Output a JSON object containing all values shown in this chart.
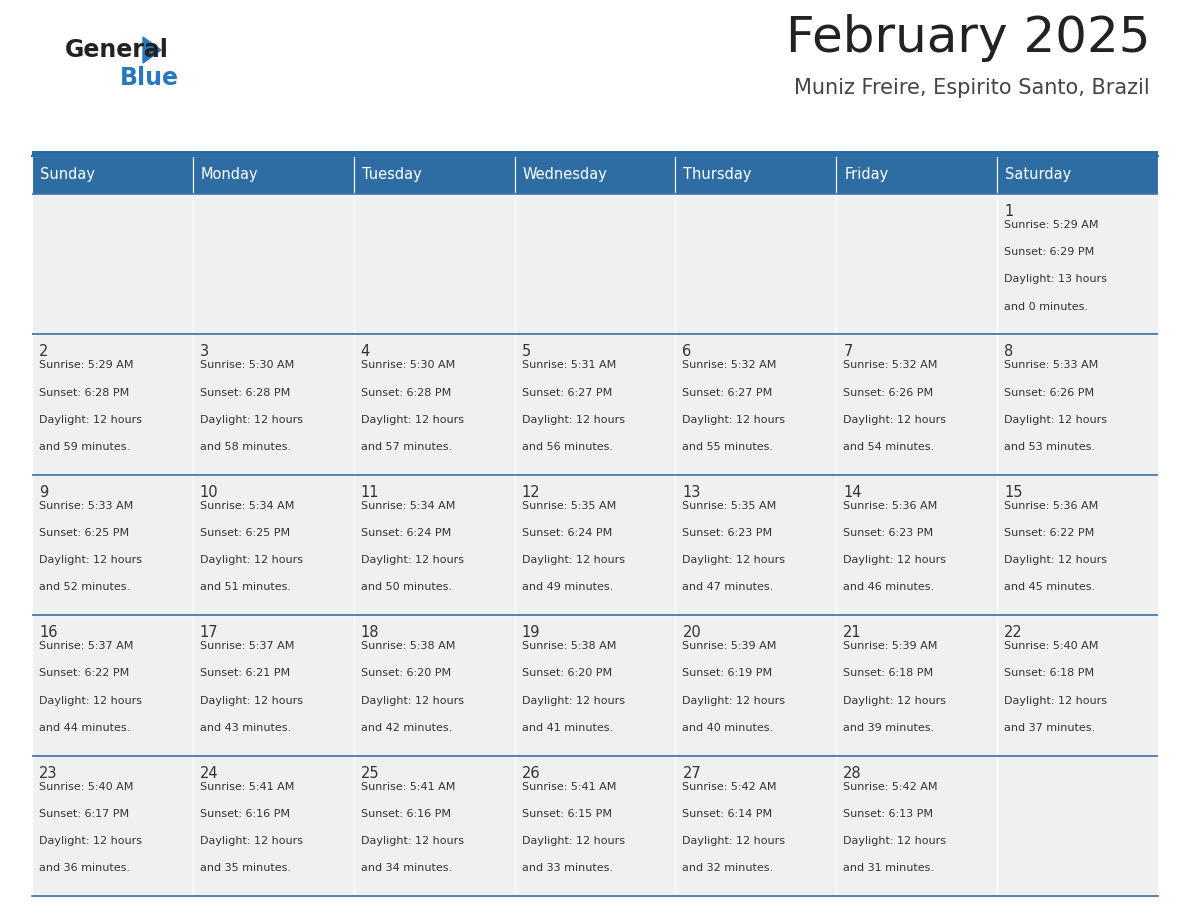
{
  "title": "February 2025",
  "subtitle": "Muniz Freire, Espirito Santo, Brazil",
  "days_of_week": [
    "Sunday",
    "Monday",
    "Tuesday",
    "Wednesday",
    "Thursday",
    "Friday",
    "Saturday"
  ],
  "header_bg": "#2E6DA4",
  "header_text": "#FFFFFF",
  "cell_bg_light": "#F0F0F0",
  "cell_border_color": "#3A6EA5",
  "row_sep_color": "#3A6EA5",
  "day_num_color": "#333333",
  "info_text_color": "#333333",
  "title_color": "#222222",
  "subtitle_color": "#444444",
  "logo_general_color": "#222222",
  "logo_blue_color": "#2878BE",
  "calendar_data": [
    [
      null,
      null,
      null,
      null,
      null,
      null,
      {
        "day": 1,
        "sunrise": "5:29 AM",
        "sunset": "6:29 PM",
        "daylight_hours": 13,
        "daylight_minutes": 0
      }
    ],
    [
      {
        "day": 2,
        "sunrise": "5:29 AM",
        "sunset": "6:28 PM",
        "daylight_hours": 12,
        "daylight_minutes": 59
      },
      {
        "day": 3,
        "sunrise": "5:30 AM",
        "sunset": "6:28 PM",
        "daylight_hours": 12,
        "daylight_minutes": 58
      },
      {
        "day": 4,
        "sunrise": "5:30 AM",
        "sunset": "6:28 PM",
        "daylight_hours": 12,
        "daylight_minutes": 57
      },
      {
        "day": 5,
        "sunrise": "5:31 AM",
        "sunset": "6:27 PM",
        "daylight_hours": 12,
        "daylight_minutes": 56
      },
      {
        "day": 6,
        "sunrise": "5:32 AM",
        "sunset": "6:27 PM",
        "daylight_hours": 12,
        "daylight_minutes": 55
      },
      {
        "day": 7,
        "sunrise": "5:32 AM",
        "sunset": "6:26 PM",
        "daylight_hours": 12,
        "daylight_minutes": 54
      },
      {
        "day": 8,
        "sunrise": "5:33 AM",
        "sunset": "6:26 PM",
        "daylight_hours": 12,
        "daylight_minutes": 53
      }
    ],
    [
      {
        "day": 9,
        "sunrise": "5:33 AM",
        "sunset": "6:25 PM",
        "daylight_hours": 12,
        "daylight_minutes": 52
      },
      {
        "day": 10,
        "sunrise": "5:34 AM",
        "sunset": "6:25 PM",
        "daylight_hours": 12,
        "daylight_minutes": 51
      },
      {
        "day": 11,
        "sunrise": "5:34 AM",
        "sunset": "6:24 PM",
        "daylight_hours": 12,
        "daylight_minutes": 50
      },
      {
        "day": 12,
        "sunrise": "5:35 AM",
        "sunset": "6:24 PM",
        "daylight_hours": 12,
        "daylight_minutes": 49
      },
      {
        "day": 13,
        "sunrise": "5:35 AM",
        "sunset": "6:23 PM",
        "daylight_hours": 12,
        "daylight_minutes": 47
      },
      {
        "day": 14,
        "sunrise": "5:36 AM",
        "sunset": "6:23 PM",
        "daylight_hours": 12,
        "daylight_minutes": 46
      },
      {
        "day": 15,
        "sunrise": "5:36 AM",
        "sunset": "6:22 PM",
        "daylight_hours": 12,
        "daylight_minutes": 45
      }
    ],
    [
      {
        "day": 16,
        "sunrise": "5:37 AM",
        "sunset": "6:22 PM",
        "daylight_hours": 12,
        "daylight_minutes": 44
      },
      {
        "day": 17,
        "sunrise": "5:37 AM",
        "sunset": "6:21 PM",
        "daylight_hours": 12,
        "daylight_minutes": 43
      },
      {
        "day": 18,
        "sunrise": "5:38 AM",
        "sunset": "6:20 PM",
        "daylight_hours": 12,
        "daylight_minutes": 42
      },
      {
        "day": 19,
        "sunrise": "5:38 AM",
        "sunset": "6:20 PM",
        "daylight_hours": 12,
        "daylight_minutes": 41
      },
      {
        "day": 20,
        "sunrise": "5:39 AM",
        "sunset": "6:19 PM",
        "daylight_hours": 12,
        "daylight_minutes": 40
      },
      {
        "day": 21,
        "sunrise": "5:39 AM",
        "sunset": "6:18 PM",
        "daylight_hours": 12,
        "daylight_minutes": 39
      },
      {
        "day": 22,
        "sunrise": "5:40 AM",
        "sunset": "6:18 PM",
        "daylight_hours": 12,
        "daylight_minutes": 37
      }
    ],
    [
      {
        "day": 23,
        "sunrise": "5:40 AM",
        "sunset": "6:17 PM",
        "daylight_hours": 12,
        "daylight_minutes": 36
      },
      {
        "day": 24,
        "sunrise": "5:41 AM",
        "sunset": "6:16 PM",
        "daylight_hours": 12,
        "daylight_minutes": 35
      },
      {
        "day": 25,
        "sunrise": "5:41 AM",
        "sunset": "6:16 PM",
        "daylight_hours": 12,
        "daylight_minutes": 34
      },
      {
        "day": 26,
        "sunrise": "5:41 AM",
        "sunset": "6:15 PM",
        "daylight_hours": 12,
        "daylight_minutes": 33
      },
      {
        "day": 27,
        "sunrise": "5:42 AM",
        "sunset": "6:14 PM",
        "daylight_hours": 12,
        "daylight_minutes": 32
      },
      {
        "day": 28,
        "sunrise": "5:42 AM",
        "sunset": "6:13 PM",
        "daylight_hours": 12,
        "daylight_minutes": 31
      },
      null
    ]
  ]
}
